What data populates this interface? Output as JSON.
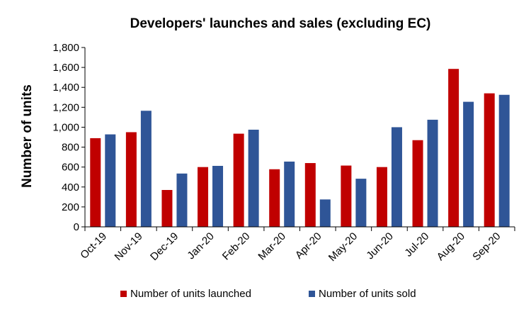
{
  "chart_data": {
    "type": "bar",
    "title": "Developers' launches and sales (excluding EC)",
    "ylabel": "Number of units",
    "xlabel": "",
    "ylim": [
      0,
      1800
    ],
    "yticks": [
      0,
      200,
      400,
      600,
      800,
      1000,
      1200,
      1400,
      1600,
      1800
    ],
    "ytick_labels": [
      "0",
      "200",
      "400",
      "600",
      "800",
      "1,000",
      "1,200",
      "1,400",
      "1,600",
      "1,800"
    ],
    "categories": [
      "Oct-19",
      "Nov-19",
      "Dec-19",
      "Jan-20",
      "Feb-20",
      "Mar-20",
      "Apr-20",
      "May-20",
      "Jun-20",
      "Jul-20",
      "Aug-20",
      "Sep-20"
    ],
    "series": [
      {
        "name": "Number of units launched",
        "color": "#C00000",
        "values": [
          890,
          950,
          370,
          600,
          935,
          578,
          640,
          615,
          600,
          870,
          1585,
          1340
        ]
      },
      {
        "name": "Number of units sold",
        "color": "#2F5597",
        "values": [
          928,
          1165,
          535,
          612,
          975,
          655,
          275,
          483,
          1000,
          1075,
          1255,
          1325
        ]
      }
    ],
    "grid": false,
    "legend": "bottom-center"
  }
}
